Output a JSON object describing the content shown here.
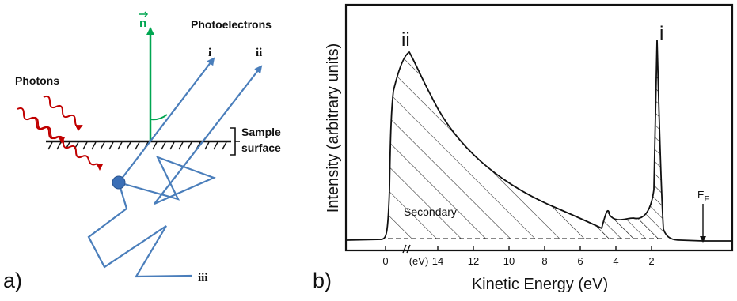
{
  "colors": {
    "photon": "#c00000",
    "path": "#4a7ebb",
    "normal": "#00a651",
    "ink": "#111111",
    "atom_fill": "#3b6fb6"
  },
  "panel_a": {
    "label": "a)",
    "normal_label": "n",
    "photoelectrons_label": "Photoelectrons",
    "photons_label": "Photons",
    "sample_label_1": "Sample",
    "sample_label_2": "surface",
    "path_i": "i",
    "path_ii": "ii",
    "path_iii": "iii"
  },
  "panel_b": {
    "label": "b)",
    "ylabel": "Intensity (arbitrary units)",
    "xlabel": "Kinetic Energy (eV)",
    "peak_i": "i",
    "peak_ii": "ii",
    "secondary_label": "Secondary",
    "fermi_label": "E",
    "fermi_sub": "F",
    "axis_break_label": "(eV)",
    "ticks": [
      "0",
      "14",
      "12",
      "10",
      "8",
      "6",
      "4",
      "2"
    ]
  }
}
